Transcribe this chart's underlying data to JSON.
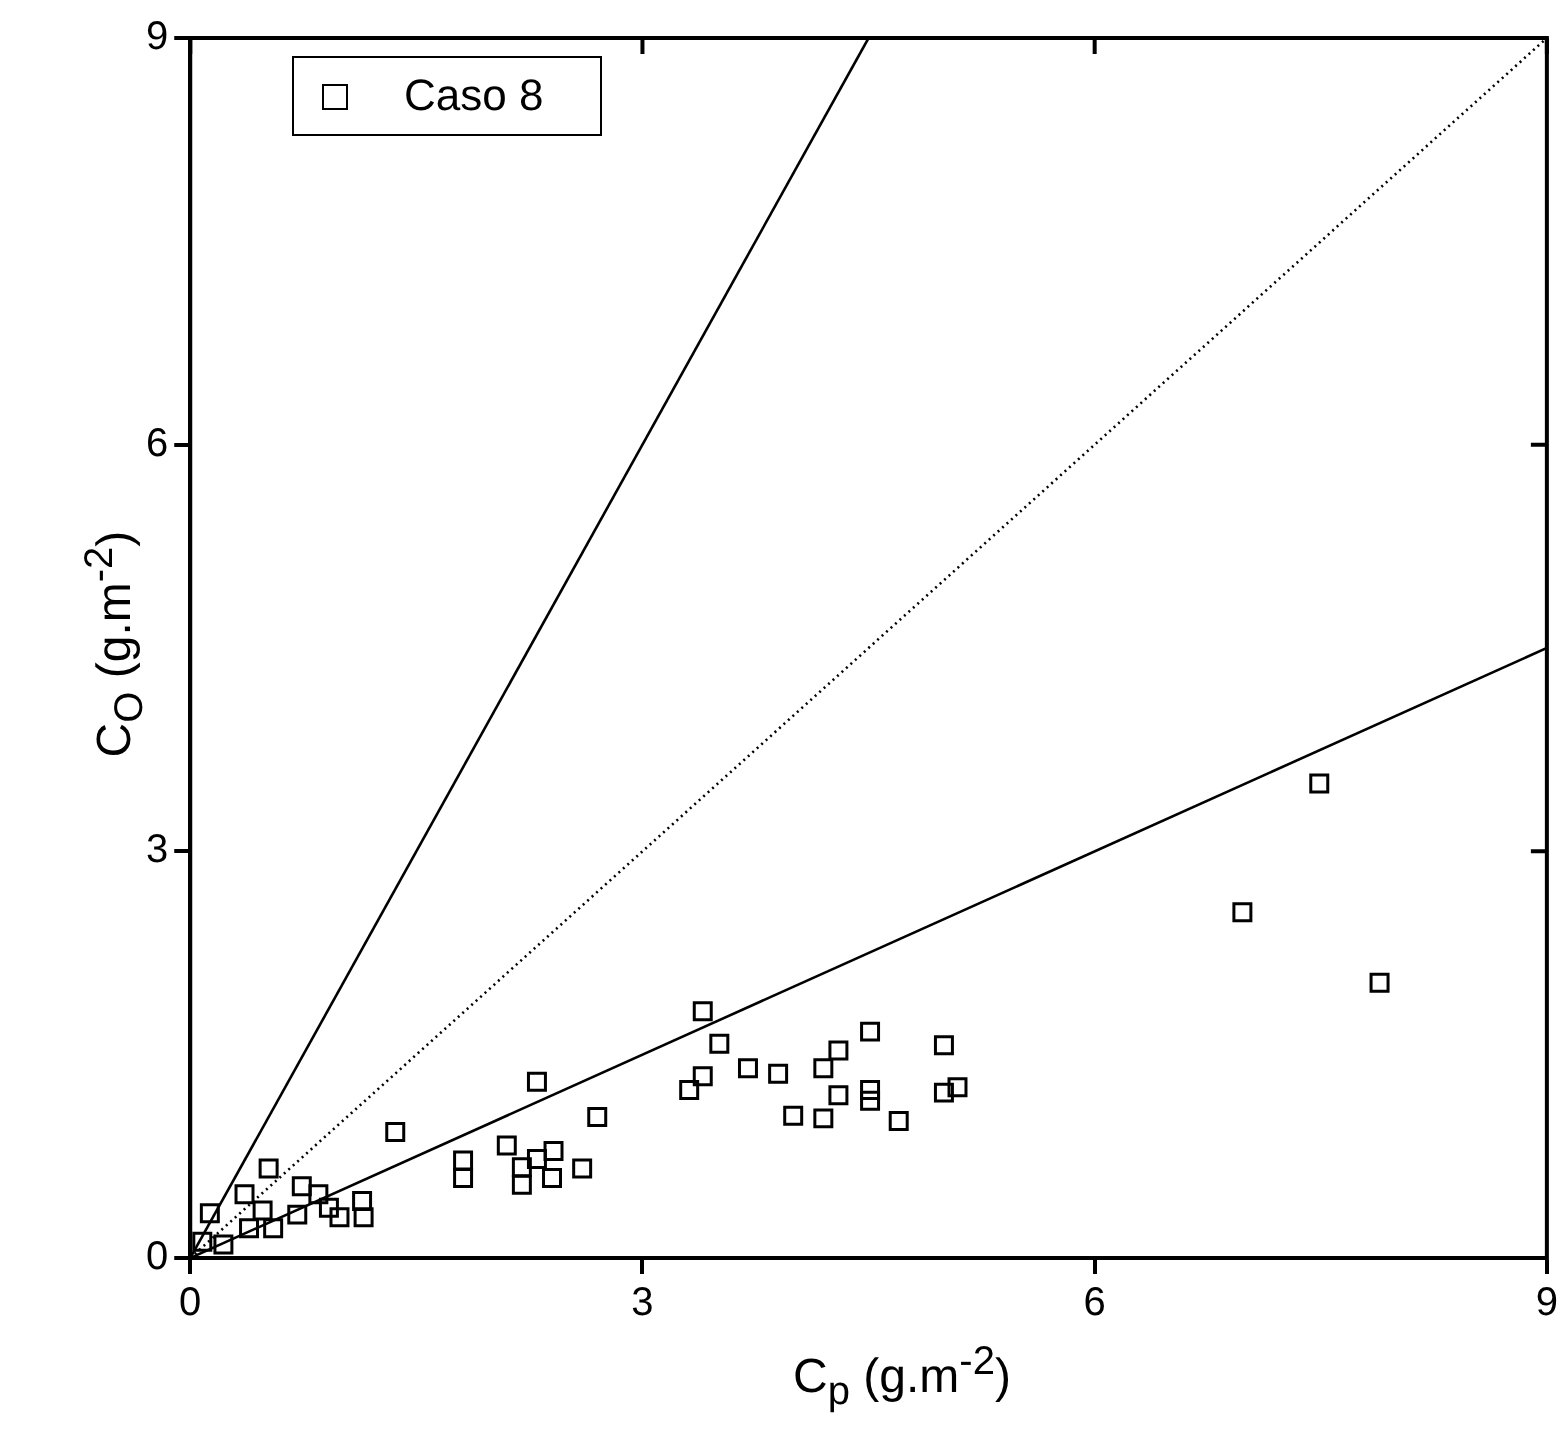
{
  "chart_data": {
    "type": "scatter",
    "xlabel": "C$_{p}$ (g.m$^{-2}$)",
    "ylabel": "C$_{O}$ (g.m$^{-2}$)",
    "xlim": [
      0,
      9
    ],
    "ylim": [
      0,
      9
    ],
    "xticks": [
      0,
      3,
      6,
      9
    ],
    "yticks": [
      0,
      3,
      6,
      9
    ],
    "grid": false,
    "legend": "top left",
    "series": [
      {
        "name": "Caso 8",
        "color": "#000000",
        "marker": "square",
        "x": [
          6.98,
          7.49,
          7.89,
          3.4,
          3.51,
          3.31,
          3.4,
          3.7,
          3.9,
          4.0,
          4.2,
          4.3,
          4.51,
          4.2,
          4.3,
          4.51,
          4.51,
          4.7,
          5.0,
          5.09,
          5.0,
          1.36,
          1.81,
          1.81,
          2.3,
          2.7,
          2.1,
          2.3,
          2.41,
          2.2,
          2.4,
          2.6,
          2.2,
          0.52,
          0.74,
          1.14,
          0.99,
          0.36,
          0.13,
          0.48,
          0.39,
          0.55,
          0.08,
          0.22,
          0.85,
          0.71,
          1.15,
          0.92
        ],
        "values": [
          2.55,
          3.5,
          2.03,
          1.82,
          1.58,
          1.24,
          1.34,
          1.4,
          1.36,
          1.05,
          1.4,
          1.53,
          1.67,
          1.03,
          1.2,
          1.16,
          1.24,
          1.01,
          1.57,
          1.26,
          1.22,
          0.93,
          0.72,
          0.59,
          1.3,
          1.04,
          0.83,
          0.73,
          0.79,
          0.54,
          0.59,
          0.66,
          0.67,
          0.66,
          0.53,
          0.42,
          0.3,
          0.47,
          0.33,
          0.35,
          0.22,
          0.22,
          0.12,
          0.1,
          0.47,
          0.32,
          0.3,
          0.37
        ]
      },
      {
        "type": "line",
        "color": "#000000",
        "marker": "none",
        "line_style": "solid",
        "x": [
          0,
          4.5
        ],
        "values": [
          0,
          9
        ]
      },
      {
        "type": "line",
        "color": "#000000",
        "marker": "none",
        "line_style": "dotted",
        "x": [
          0,
          9
        ],
        "values": [
          0,
          9
        ]
      },
      {
        "type": "line",
        "color": "#000000",
        "marker": "none",
        "line_style": "solid",
        "x": [
          0,
          9
        ],
        "values": [
          0,
          4.5
        ]
      }
    ]
  }
}
